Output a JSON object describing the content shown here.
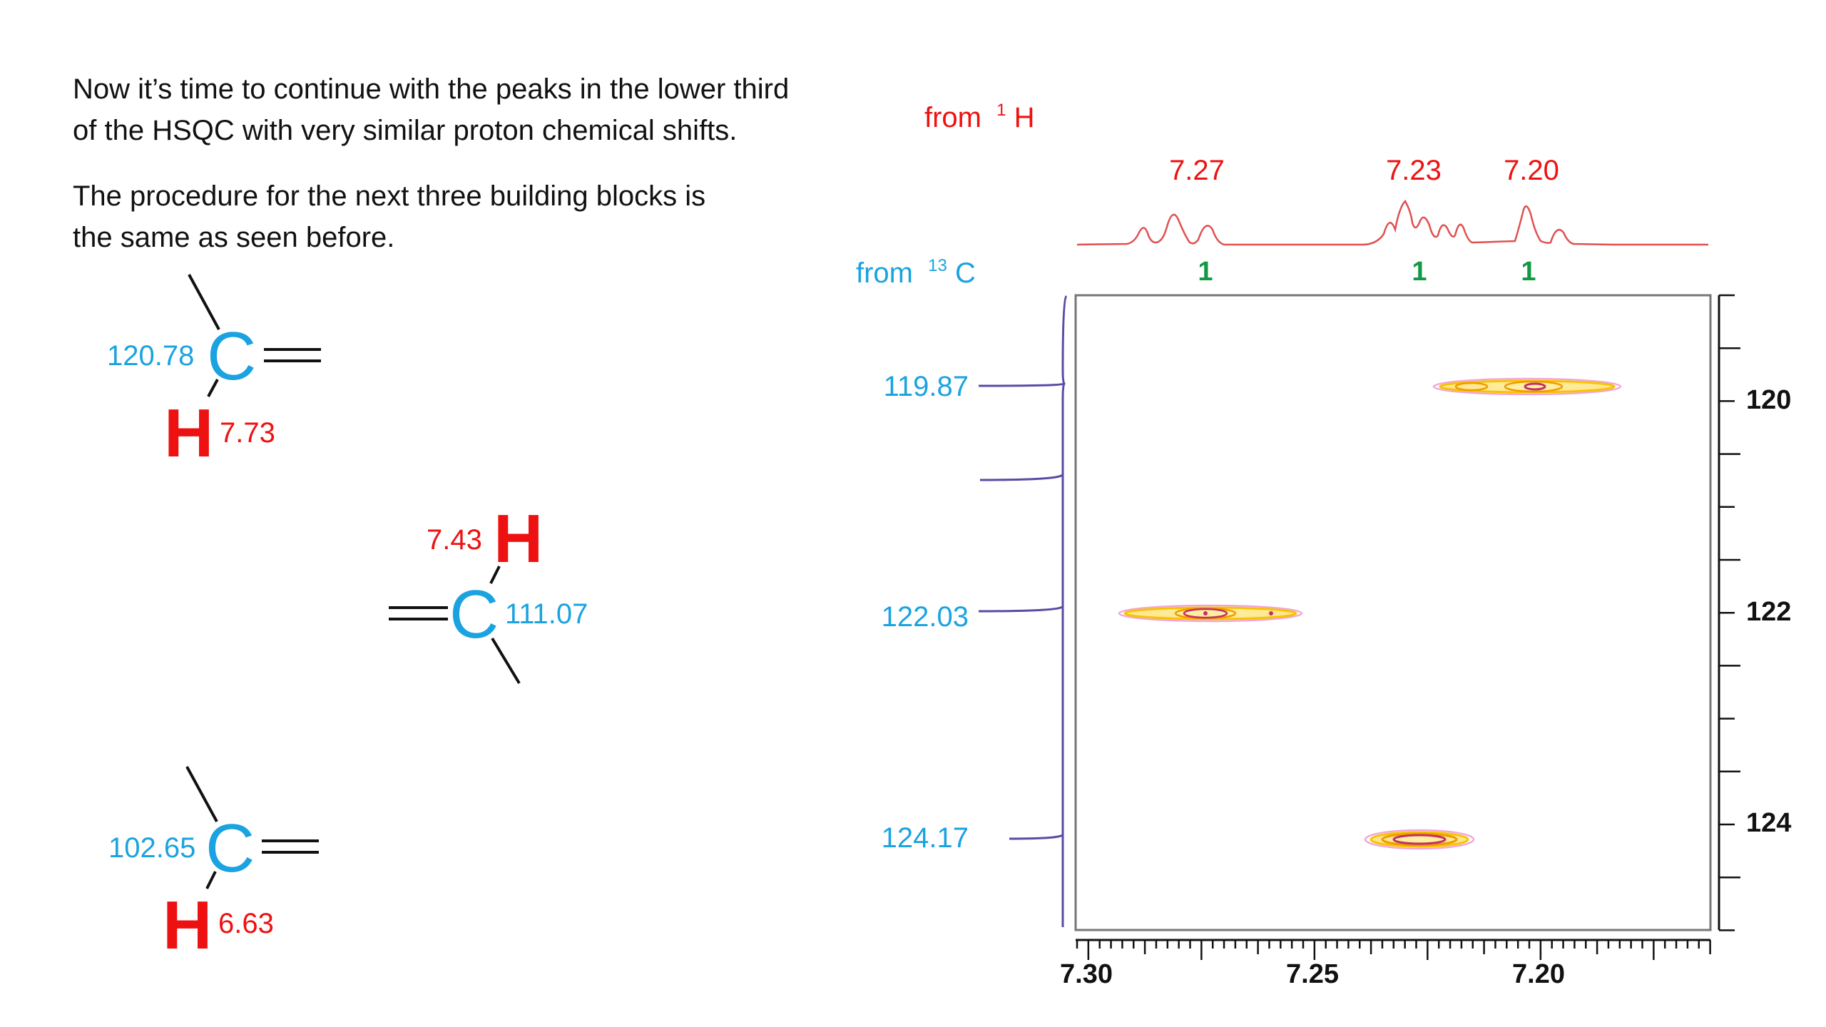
{
  "text": {
    "paragraph1_line1": "Now it’s time to continue with the peaks in the lower third",
    "paragraph1_line2": "of the HSQC with very similar proton chemical shifts.",
    "paragraph2_line1": "The procedure for the next three building blocks is",
    "paragraph2_line2": "the same as seen before."
  },
  "fragments": [
    {
      "carbon_shift": "120.78",
      "carbon_symbol": "C",
      "proton_shift": "7.73",
      "proton_symbol": "H"
    },
    {
      "carbon_shift": "111.07",
      "carbon_symbol": "C",
      "proton_shift": "7.43",
      "proton_symbol": "H"
    },
    {
      "carbon_shift": "102.65",
      "carbon_symbol": "C",
      "proton_shift": "6.63",
      "proton_symbol": "H"
    }
  ],
  "spectrum": {
    "h_projection_label": "from",
    "h_projection_nucleus": "H",
    "h_projection_mass": "1",
    "c_projection_label": "from",
    "c_projection_nucleus": "C",
    "c_projection_mass": "13",
    "h_peak_labels": [
      "7.27",
      "7.23",
      "7.20"
    ],
    "h_integrals": [
      "1",
      "1",
      "1"
    ],
    "c_peak_labels": [
      "119.87",
      "122.03",
      "124.17"
    ],
    "x_axis": {
      "ticks": [
        "7.30",
        "7.25",
        "7.20"
      ],
      "range": [
        7.3,
        7.16
      ],
      "reversed": true
    },
    "y_axis": {
      "ticks": [
        "120",
        "122",
        "124"
      ],
      "range": [
        119.1,
        125.1
      ]
    },
    "cross_peaks": [
      {
        "h": 7.27,
        "c": 122.03
      },
      {
        "h": 7.23,
        "c": 124.17
      },
      {
        "h": 7.2,
        "c": 119.87
      }
    ]
  },
  "colors": {
    "cyan": "#1aa3e0",
    "red": "#ee1111",
    "green": "#119944",
    "projection_line": "#5b4aa6",
    "spectrum_line": "#e05050"
  }
}
